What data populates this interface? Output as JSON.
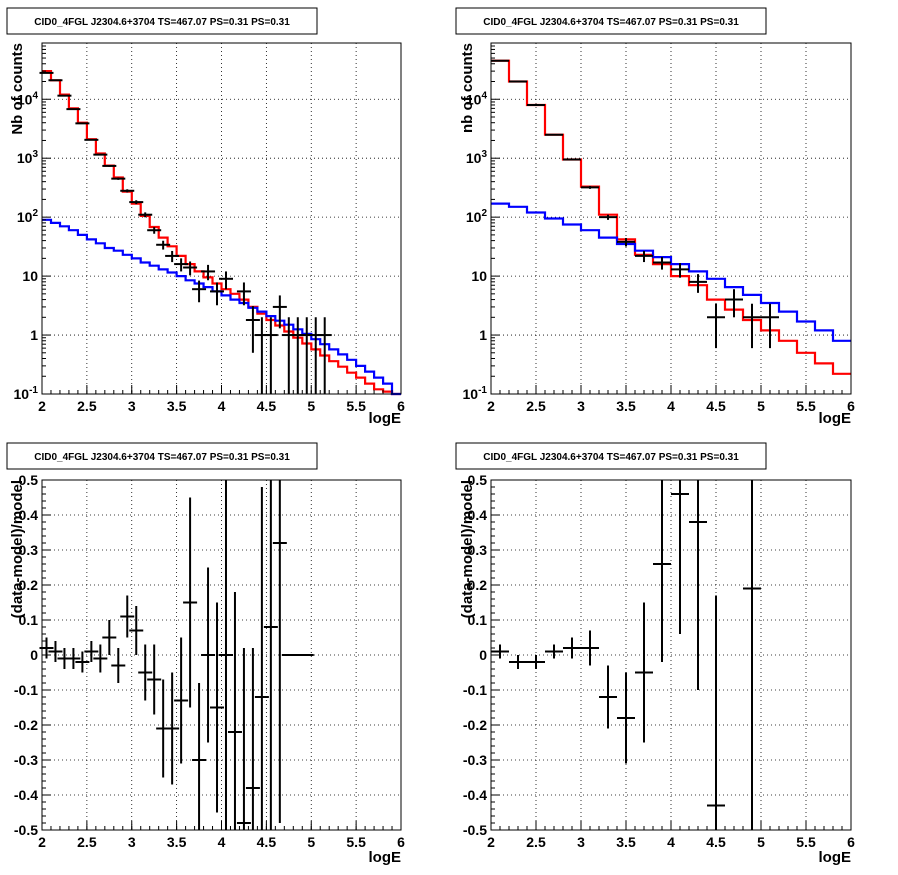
{
  "chart_data": [
    {
      "type": "line",
      "title": "CID0_4FGL J2304.6+3704 TS=467.07 PS=0.31 PS=0.31",
      "xlabel": "logE",
      "ylabel": "Nb of counts",
      "xlim": [
        2,
        6
      ],
      "ylim": [
        0.1,
        90000
      ],
      "yscale": "log",
      "grid": true,
      "x_ticks": [
        "2",
        "2.5",
        "3",
        "3.5",
        "4",
        "4.5",
        "5",
        "5.5",
        "6"
      ],
      "y_ticks": [
        "10^-1",
        "1",
        "10",
        "10^2",
        "10^3",
        "10^4"
      ],
      "series": [
        {
          "color": "#ff0000",
          "style": "step",
          "bin_width": 0.1,
          "x": [
            2.0,
            2.1,
            2.2,
            2.3,
            2.4,
            2.5,
            2.6,
            2.7,
            2.8,
            2.9,
            3.0,
            3.1,
            3.2,
            3.3,
            3.4,
            3.5,
            3.6,
            3.7,
            3.8,
            3.9,
            4.0,
            4.1,
            4.2,
            4.3,
            4.4,
            4.5,
            4.6,
            4.7,
            4.8,
            4.9,
            5.0,
            5.1,
            5.2,
            5.3,
            5.4,
            5.5,
            5.6,
            5.7,
            5.8,
            5.9
          ],
          "values": [
            30000,
            21000,
            12000,
            7000,
            4000,
            2100,
            1200,
            750,
            470,
            270,
            170,
            105,
            68,
            45,
            32,
            22,
            16,
            12,
            9.5,
            7.5,
            6,
            5,
            4,
            3,
            2.3,
            1.8,
            1.45,
            1.15,
            0.9,
            0.72,
            0.57,
            0.45,
            0.36,
            0.29,
            0.23,
            0.19,
            0.15,
            0.12,
            0.11,
            0.1
          ]
        },
        {
          "color": "#0000ff",
          "style": "step",
          "bin_width": 0.1,
          "x": [
            2.0,
            2.1,
            2.2,
            2.3,
            2.4,
            2.5,
            2.6,
            2.7,
            2.8,
            2.9,
            3.0,
            3.1,
            3.2,
            3.3,
            3.4,
            3.5,
            3.6,
            3.7,
            3.8,
            3.9,
            4.0,
            4.1,
            4.2,
            4.3,
            4.4,
            4.5,
            4.6,
            4.7,
            4.8,
            4.9,
            5.0,
            5.1,
            5.2,
            5.3,
            5.4,
            5.5,
            5.6,
            5.7,
            5.8,
            5.9
          ],
          "values": [
            90,
            80,
            70,
            60,
            50,
            42,
            36,
            30,
            27,
            23,
            20,
            17,
            15,
            13,
            11.5,
            10,
            8.5,
            7.5,
            6.5,
            5.5,
            4.7,
            4,
            3.5,
            2.9,
            2.5,
            2.1,
            1.75,
            1.5,
            1.25,
            1.05,
            0.85,
            0.7,
            0.57,
            0.47,
            0.38,
            0.3,
            0.24,
            0.19,
            0.15,
            0.1
          ]
        },
        {
          "color": "#000000",
          "style": "errorbars",
          "x": [
            2.05,
            2.15,
            2.25,
            2.35,
            2.45,
            2.55,
            2.65,
            2.75,
            2.85,
            2.95,
            3.05,
            3.15,
            3.25,
            3.35,
            3.45,
            3.55,
            3.65,
            3.75,
            3.85,
            3.95,
            4.05,
            4.25,
            4.35,
            4.45,
            4.55,
            4.65,
            4.75,
            4.85,
            4.95,
            5.05,
            5.15
          ],
          "values": [
            28000,
            21000,
            11500,
            6800,
            3900,
            2050,
            1150,
            740,
            450,
            280,
            180,
            110,
            60,
            34,
            22,
            16,
            14,
            6,
            12,
            5.5,
            9,
            5.5,
            1.8,
            1,
            1,
            3,
            1,
            1,
            1,
            1,
            1
          ],
          "errors": [
            170,
            145,
            107,
            82,
            62,
            45,
            34,
            27,
            21,
            17,
            13.4,
            10.5,
            7.7,
            5.8,
            4.7,
            4,
            3.7,
            2.4,
            3.5,
            2.3,
            3,
            2.3,
            1.3,
            1,
            1,
            1.7,
            1,
            1,
            1,
            1,
            1
          ]
        }
      ]
    },
    {
      "type": "line",
      "title": "CID0_4FGL J2304.6+3704 TS=467.07 PS=0.31 PS=0.31",
      "xlabel": "logE",
      "ylabel": "nb of counts",
      "xlim": [
        2,
        6
      ],
      "ylim": [
        0.1,
        90000
      ],
      "yscale": "log",
      "grid": true,
      "x_ticks": [
        "2",
        "2.5",
        "3",
        "3.5",
        "4",
        "4.5",
        "5",
        "5.5",
        "6"
      ],
      "y_ticks": [
        "10^-1",
        "1",
        "10",
        "10^2",
        "10^3",
        "10^4"
      ],
      "series": [
        {
          "color": "#ff0000",
          "style": "step",
          "bin_width": 0.2,
          "x": [
            2.0,
            2.2,
            2.4,
            2.6,
            2.8,
            3.0,
            3.2,
            3.4,
            3.6,
            3.8,
            4.0,
            4.2,
            4.4,
            4.6,
            4.8,
            5.0,
            5.2,
            5.4,
            5.6,
            5.8
          ],
          "values": [
            45000,
            20000,
            8000,
            2500,
            950,
            330,
            110,
            42,
            23,
            16,
            10,
            7,
            4,
            2.7,
            1.8,
            1.2,
            0.8,
            0.5,
            0.33,
            0.22
          ]
        },
        {
          "color": "#0000ff",
          "style": "step",
          "bin_width": 0.2,
          "x": [
            2.0,
            2.2,
            2.4,
            2.6,
            2.8,
            3.0,
            3.2,
            3.4,
            3.6,
            3.8,
            4.0,
            4.2,
            4.4,
            4.6,
            4.8,
            5.0,
            5.2,
            5.4,
            5.6,
            5.8
          ],
          "values": [
            170,
            150,
            120,
            95,
            75,
            60,
            45,
            35,
            27,
            21,
            16,
            12,
            9,
            6.5,
            4.8,
            3.5,
            2.5,
            1.7,
            1.2,
            0.8
          ]
        },
        {
          "color": "#000000",
          "style": "errorbars",
          "x": [
            2.1,
            2.3,
            2.5,
            2.7,
            2.9,
            3.1,
            3.3,
            3.5,
            3.7,
            3.9,
            4.1,
            4.3,
            4.5,
            4.7,
            4.9,
            5.1
          ],
          "values": [
            45000,
            20000,
            8000,
            2500,
            950,
            320,
            100,
            38,
            22,
            17,
            13,
            8,
            2,
            4,
            2,
            2
          ],
          "errors": [
            212,
            141,
            89,
            50,
            31,
            18,
            10,
            6.2,
            4.7,
            4.1,
            3.6,
            2.8,
            1.4,
            2,
            1.4,
            1.4
          ]
        }
      ]
    },
    {
      "type": "scatter",
      "title": "CID0_4FGL J2304.6+3704 TS=467.07 PS=0.31 PS=0.31",
      "xlabel": "logE",
      "ylabel": "(data-model)/model",
      "xlim": [
        2,
        6
      ],
      "ylim": [
        -0.5,
        0.5
      ],
      "grid": true,
      "x_ticks": [
        "2",
        "2.5",
        "3",
        "3.5",
        "4",
        "4.5",
        "5",
        "5.5",
        "6"
      ],
      "y_ticks": [
        "-0.5",
        "-0.4",
        "-0.3",
        "-0.2",
        "-0.1",
        "0",
        "0.1",
        "0.2",
        "0.3",
        "0.4",
        "0.5"
      ],
      "series": [
        {
          "color": "#000000",
          "style": "errorbars",
          "x": [
            2.05,
            2.15,
            2.25,
            2.35,
            2.45,
            2.55,
            2.65,
            2.75,
            2.85,
            2.95,
            3.05,
            3.15,
            3.25,
            3.35,
            3.45,
            3.55,
            3.65,
            3.75,
            3.85,
            3.95,
            4.05,
            4.15,
            4.25,
            4.35,
            4.45,
            4.55,
            4.65,
            4.75,
            4.85,
            4.95
          ],
          "values": [
            0.02,
            0.01,
            -0.01,
            -0.01,
            -0.02,
            0.01,
            -0.01,
            0.05,
            -0.03,
            0.11,
            0.07,
            -0.05,
            -0.07,
            -0.21,
            -0.21,
            -0.13,
            0.15,
            -0.3,
            0.0,
            -0.15,
            0.0,
            -0.22,
            -0.48,
            -0.38,
            -0.12,
            0.08,
            0.32,
            0.0,
            0.0,
            0.0
          ],
          "errors": [
            0.03,
            0.03,
            0.03,
            0.03,
            0.03,
            0.03,
            0.04,
            0.05,
            0.05,
            0.06,
            0.07,
            0.08,
            0.1,
            0.14,
            0.16,
            0.18,
            0.3,
            0.22,
            0.25,
            0.3,
            0.5,
            0.4,
            0.5,
            0.4,
            0.6,
            0.6,
            0.8,
            0.0,
            0.0,
            0.0
          ]
        }
      ]
    },
    {
      "type": "scatter",
      "title": "CID0_4FGL J2304.6+3704 TS=467.07 PS=0.31 PS=0.31",
      "xlabel": "logE",
      "ylabel": "(data-model)/model",
      "xlim": [
        2,
        6
      ],
      "ylim": [
        -0.5,
        0.5
      ],
      "grid": true,
      "x_ticks": [
        "2",
        "2.5",
        "3",
        "3.5",
        "4",
        "4.5",
        "5",
        "5.5",
        "6"
      ],
      "y_ticks": [
        "-0.5",
        "-0.4",
        "-0.3",
        "-0.2",
        "-0.1",
        "0",
        "0.1",
        "0.2",
        "0.3",
        "0.4",
        "0.5"
      ],
      "series": [
        {
          "color": "#000000",
          "style": "errorbars",
          "x": [
            2.1,
            2.3,
            2.5,
            2.7,
            2.9,
            3.1,
            3.3,
            3.5,
            3.7,
            3.9,
            4.1,
            4.3,
            4.5,
            4.9
          ],
          "values": [
            0.01,
            -0.02,
            -0.02,
            0.01,
            0.02,
            0.02,
            -0.12,
            -0.18,
            -0.05,
            0.26,
            0.46,
            0.38,
            -0.43,
            0.19
          ],
          "errors": [
            0.02,
            0.02,
            0.02,
            0.02,
            0.03,
            0.05,
            0.09,
            0.13,
            0.2,
            0.28,
            0.4,
            0.48,
            0.6,
            0.7
          ]
        }
      ]
    }
  ]
}
